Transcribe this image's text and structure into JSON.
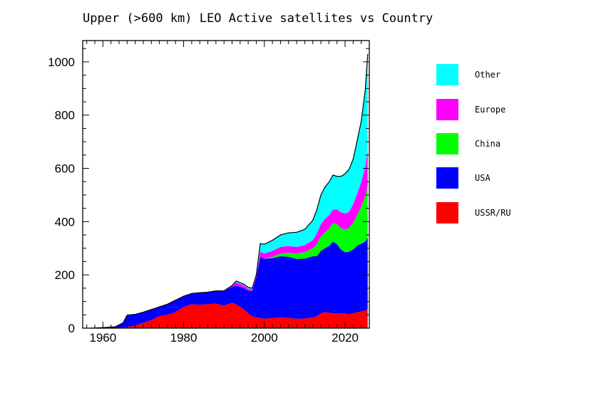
{
  "chart_data": {
    "type": "area",
    "title": "Upper (>600 km) LEO Active satellites vs Country",
    "xlabel": "",
    "ylabel": "",
    "xlim": [
      1955,
      2026
    ],
    "ylim": [
      0,
      1080
    ],
    "x_ticks": [
      1960,
      1980,
      2000,
      2020
    ],
    "y_ticks": [
      0,
      200,
      400,
      600,
      800,
      1000
    ],
    "legend_position": "right",
    "stacking": "stacked",
    "x": [
      1957,
      1960,
      1963,
      1965,
      1966,
      1968,
      1970,
      1972,
      1974,
      1976,
      1978,
      1980,
      1982,
      1984,
      1986,
      1988,
      1990,
      1992,
      1993,
      1995,
      1996,
      1997,
      1998,
      1999,
      2000,
      2002,
      2004,
      2006,
      2008,
      2010,
      2012,
      2013,
      2014,
      2015,
      2016,
      2017,
      2018,
      2019,
      2020,
      2021,
      2022,
      2023,
      2024,
      2025,
      2025.6
    ],
    "series": [
      {
        "name": "USSR/RU",
        "color": "#ff0000",
        "values": [
          0,
          0,
          0,
          2,
          4,
          10,
          20,
          30,
          45,
          50,
          60,
          80,
          90,
          88,
          90,
          92,
          85,
          95,
          90,
          70,
          55,
          45,
          40,
          38,
          35,
          38,
          40,
          38,
          35,
          36,
          40,
          45,
          55,
          60,
          58,
          55,
          55,
          55,
          55,
          52,
          55,
          60,
          62,
          65,
          72
        ]
      },
      {
        "name": "USA",
        "color": "#0000ff",
        "values": [
          0,
          2,
          5,
          18,
          45,
          42,
          40,
          40,
          35,
          40,
          45,
          40,
          40,
          45,
          45,
          48,
          55,
          60,
          70,
          80,
          85,
          95,
          150,
          230,
          225,
          225,
          230,
          230,
          225,
          225,
          230,
          225,
          235,
          240,
          250,
          270,
          260,
          240,
          230,
          235,
          240,
          250,
          255,
          260,
          268
        ]
      },
      {
        "name": "China",
        "color": "#00ff00",
        "values": [
          0,
          0,
          0,
          0,
          0,
          0,
          0,
          0,
          0,
          0,
          0,
          0,
          0,
          0,
          0,
          0,
          0,
          0,
          0,
          0,
          0,
          0,
          0,
          0,
          0,
          5,
          10,
          15,
          20,
          25,
          30,
          45,
          55,
          60,
          65,
          70,
          75,
          80,
          85,
          90,
          100,
          115,
          140,
          170,
          195
        ]
      },
      {
        "name": "Europe",
        "color": "#ff00ff",
        "values": [
          0,
          0,
          0,
          0,
          0,
          0,
          0,
          0,
          0,
          0,
          0,
          0,
          0,
          0,
          0,
          0,
          0,
          5,
          12,
          10,
          8,
          5,
          5,
          20,
          20,
          22,
          25,
          25,
          25,
          25,
          30,
          40,
          45,
          50,
          50,
          50,
          55,
          60,
          60,
          60,
          70,
          80,
          90,
          110,
          135
        ]
      },
      {
        "name": "Other",
        "color": "#00ffff",
        "values": [
          0,
          0,
          0,
          0,
          0,
          0,
          0,
          0,
          0,
          0,
          0,
          0,
          0,
          0,
          0,
          0,
          0,
          0,
          5,
          5,
          5,
          5,
          5,
          30,
          35,
          40,
          45,
          50,
          55,
          60,
          75,
          90,
          110,
          120,
          125,
          130,
          125,
          135,
          150,
          160,
          170,
          200,
          230,
          290,
          360
        ]
      }
    ],
    "total_line_color": "#000000"
  },
  "legend": [
    {
      "label": "Other",
      "color": "#00ffff"
    },
    {
      "label": "Europe",
      "color": "#ff00ff"
    },
    {
      "label": "China",
      "color": "#00ff00"
    },
    {
      "label": "USA",
      "color": "#0000ff"
    },
    {
      "label": "USSR/RU",
      "color": "#ff0000"
    }
  ]
}
